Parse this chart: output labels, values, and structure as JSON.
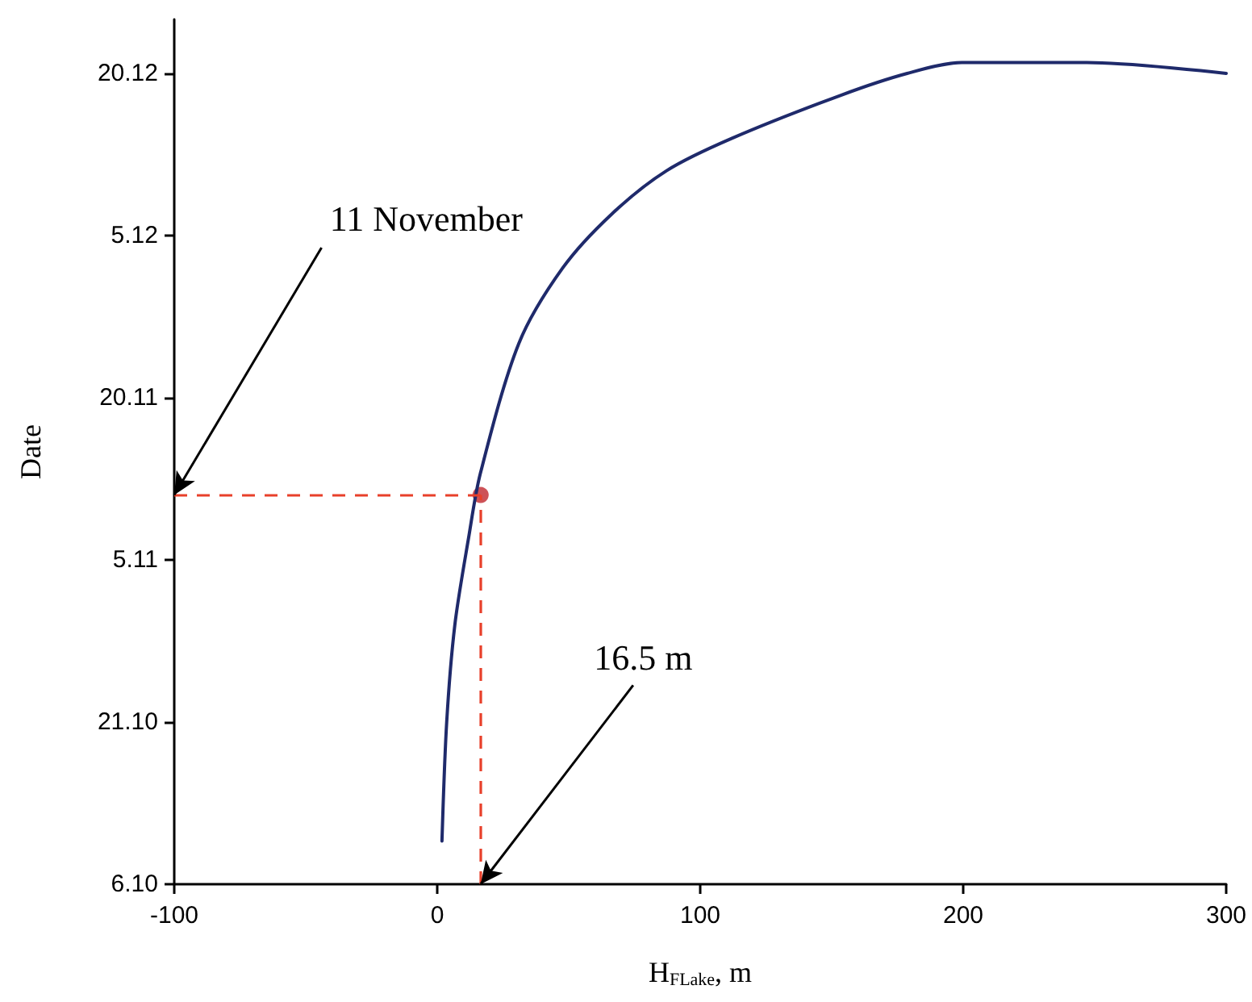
{
  "chart_data": {
    "type": "line",
    "orientation": "horizontal",
    "xlabel": "H$_{FLake}$, m",
    "ylabel": "Date",
    "xlim": [
      -100,
      300
    ],
    "xticks": [
      -100,
      0,
      100,
      200,
      300
    ],
    "ylim": [
      "--10-06",
      "--12-25"
    ],
    "yticks": [
      {
        "value": "--10-06",
        "label": "6.10"
      },
      {
        "value": "--10-21",
        "label": "21.10"
      },
      {
        "value": "--11-05",
        "label": "5.11"
      },
      {
        "value": "--11-20",
        "label": "20.11"
      },
      {
        "value": "--12-05",
        "label": "5.12"
      },
      {
        "value": "--12-20",
        "label": "20.12"
      }
    ],
    "grid": false,
    "marker": "none",
    "line_style": "solid",
    "series": [
      {
        "color": "#1f2a6b",
        "x": [
          "--10-10",
          "--10-21",
          "--10-30",
          "--11-07",
          "--11-13",
          "--11-25",
          "--12-02",
          "--12-07",
          "--12-11",
          "--12-14",
          "--12-18",
          "--12-20",
          "--12-21",
          "--12-21",
          "--12-20"
        ],
        "values": [
          1.8,
          3.6,
          6.7,
          11.9,
          16.4,
          31,
          47.7,
          66.4,
          87.2,
          112.1,
          153.7,
          178.7,
          199.5,
          247,
          300
        ]
      },
      {
        "type": "scatter",
        "marker": "circle",
        "color": "#c0272d",
        "x": [
          "--11-11"
        ],
        "values": [
          16.5
        ]
      }
    ],
    "ref_lines": [
      {
        "axis": "y",
        "value": "--11-11",
        "label": "11 November",
        "color": "#e8402a",
        "line_style": "dashed"
      },
      {
        "axis": "x",
        "value": 16.5,
        "label": "16.5 m",
        "color": "#e8402a",
        "line_style": "dashed"
      }
    ]
  }
}
